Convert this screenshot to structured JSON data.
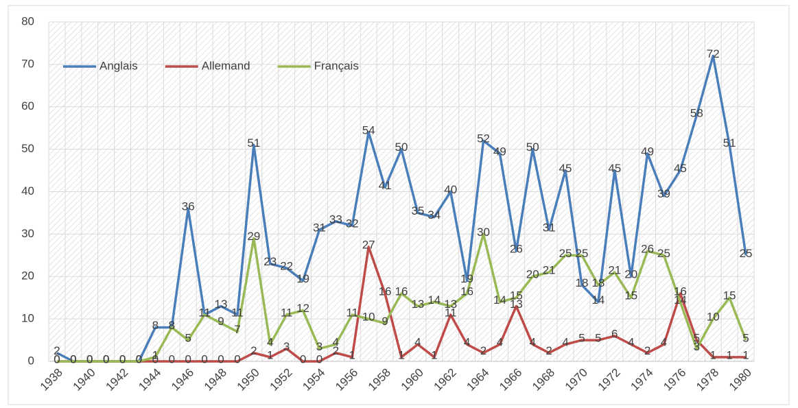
{
  "chart_data": {
    "type": "line",
    "categories": [
      "1938",
      null,
      "1940",
      null,
      "1942",
      null,
      "1944",
      null,
      "1946",
      null,
      "1948",
      null,
      "1950",
      null,
      "1952",
      null,
      "1954",
      null,
      "1956",
      null,
      "1958",
      null,
      "1960",
      null,
      "1962",
      null,
      "1964",
      null,
      "1966",
      null,
      "1968",
      null,
      "1970",
      null,
      "1972",
      null,
      "1974",
      null,
      "1976",
      null,
      "1978",
      null,
      "1980"
    ],
    "series": [
      {
        "name": "Anglais",
        "color": "#4a7ebb",
        "values": [
          2,
          0,
          0,
          0,
          0,
          0,
          8,
          8,
          36,
          11,
          13,
          11,
          51,
          23,
          22,
          19,
          31,
          33,
          32,
          54,
          41,
          50,
          35,
          34,
          40,
          19,
          52,
          49,
          26,
          50,
          31,
          45,
          18,
          14,
          45,
          20,
          49,
          39,
          45,
          58,
          72,
          51,
          25
        ]
      },
      {
        "name": "Allemand",
        "color": "#be4b48",
        "values": [
          0,
          0,
          0,
          0,
          0,
          0,
          0,
          0,
          0,
          0,
          0,
          0,
          2,
          1,
          3,
          0,
          0,
          2,
          1,
          27,
          16,
          1,
          4,
          1,
          11,
          4,
          2,
          4,
          13,
          4,
          2,
          4,
          5,
          5,
          6,
          4,
          2,
          4,
          16,
          5,
          1,
          1,
          1
        ]
      },
      {
        "name": "Français",
        "color": "#98b954",
        "values": [
          0,
          0,
          0,
          0,
          0,
          0,
          1,
          8,
          5,
          11,
          9,
          7,
          29,
          4,
          11,
          12,
          3,
          4,
          11,
          10,
          9,
          16,
          13,
          14,
          13,
          16,
          30,
          14,
          15,
          20,
          21,
          25,
          25,
          18,
          21,
          15,
          26,
          25,
          14,
          3,
          10,
          15,
          5
        ]
      }
    ],
    "ylim": [
      0,
      80
    ],
    "yticks": [
      0,
      10,
      20,
      30,
      40,
      50,
      60,
      70,
      80
    ],
    "grid": true,
    "legend": "top-left"
  }
}
